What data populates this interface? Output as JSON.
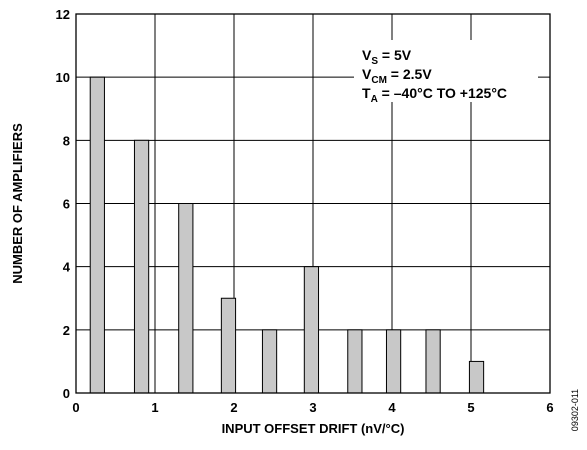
{
  "chart_data": {
    "type": "bar",
    "xlabel": "INPUT OFFSET DRIFT (nV/°C)",
    "ylabel": "NUMBER OF AMPLIFIERS",
    "xlim": [
      0,
      6
    ],
    "ylim": [
      0,
      12
    ],
    "x_ticks": [
      "0",
      "1",
      "2",
      "3",
      "4",
      "5",
      "6"
    ],
    "y_ticks": [
      "0",
      "2",
      "4",
      "6",
      "8",
      "10",
      "12"
    ],
    "grid": true,
    "bar_color": "#c8c8c8",
    "bar_width": 0.18,
    "x": [
      0.27,
      0.83,
      1.39,
      1.93,
      2.45,
      2.98,
      3.53,
      4.02,
      4.52,
      5.07
    ],
    "values": [
      10,
      8,
      6,
      3,
      2,
      4,
      2,
      2,
      2,
      1
    ],
    "annotation": [
      {
        "main": "V",
        "sub": "S",
        "rest": " = 5V"
      },
      {
        "main": "V",
        "sub": "CM",
        "rest": " = 2.5V"
      },
      {
        "main": "T",
        "sub": "A",
        "rest": " = –40°C TO +125°C"
      }
    ]
  },
  "figure_id": "09302-011"
}
